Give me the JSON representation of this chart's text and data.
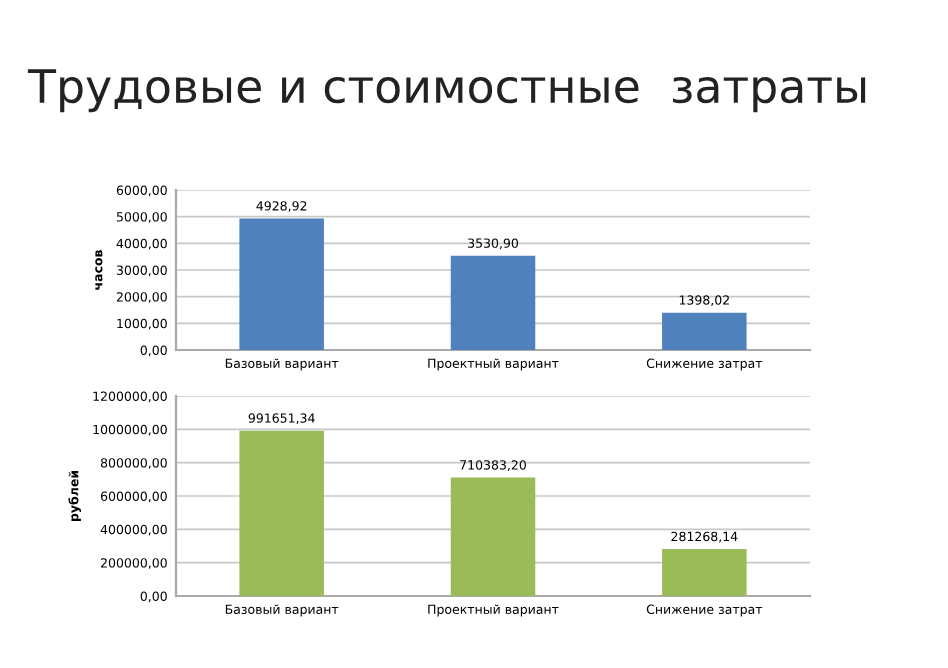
{
  "chart_data": [
    {
      "type": "bar",
      "title": "Трудовые и стоимостные  затраты",
      "ylabel": "часов",
      "categories": [
        "Базовый вариант",
        "Проектный вариант",
        "Снижение затрат"
      ],
      "values": [
        4928.92,
        3530.9,
        1398.02
      ],
      "value_labels": [
        "4928,92",
        "3530,90",
        "1398,02"
      ],
      "color": "#4f81bd",
      "ylim": [
        0,
        6000
      ],
      "yticks": [
        {
          "value": 0,
          "label": "0,00"
        },
        {
          "value": 1000,
          "label": "1000,00"
        },
        {
          "value": 2000,
          "label": "2000,00"
        },
        {
          "value": 3000,
          "label": "3000,00"
        },
        {
          "value": 4000,
          "label": "4000,00"
        },
        {
          "value": 5000,
          "label": "5000,00"
        },
        {
          "value": 6000,
          "label": "6000,00"
        }
      ],
      "grid": "y"
    },
    {
      "type": "bar",
      "ylabel": "рублей",
      "categories": [
        "Базовый вариант",
        "Проектный вариант",
        "Снижение затрат"
      ],
      "values": [
        991651.34,
        710383.2,
        281268.14
      ],
      "value_labels": [
        "991651,34",
        "710383,20",
        "281268,14"
      ],
      "color": "#9bbb59",
      "ylim": [
        0,
        1200000
      ],
      "yticks": [
        {
          "value": 0,
          "label": "0,00"
        },
        {
          "value": 200000,
          "label": "200000,00"
        },
        {
          "value": 400000,
          "label": "400000,00"
        },
        {
          "value": 600000,
          "label": "600000,00"
        },
        {
          "value": 800000,
          "label": "800000,00"
        },
        {
          "value": 1000000,
          "label": "1000000,00"
        },
        {
          "value": 1200000,
          "label": "1200000,00"
        }
      ],
      "grid": "y"
    }
  ]
}
